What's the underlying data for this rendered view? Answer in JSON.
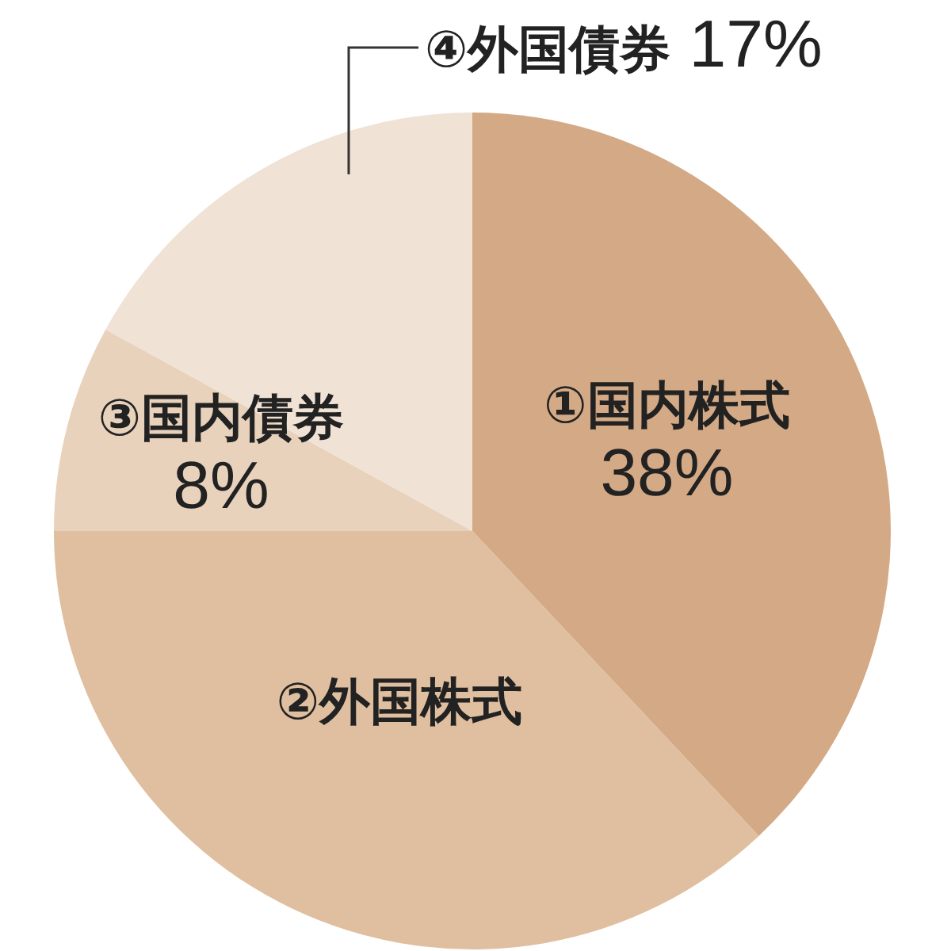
{
  "chart_data": {
    "type": "pie",
    "categories": [
      "①国内株式",
      "②外国株式",
      "③国内債券",
      "④外国債券"
    ],
    "values": [
      38,
      37,
      8,
      17
    ],
    "value_labels": [
      "38%",
      null,
      "8%",
      "17%"
    ],
    "colors": [
      "#d4a985",
      "#dfbf9f",
      "#e8d2bc",
      "#f0e2d4"
    ]
  }
}
